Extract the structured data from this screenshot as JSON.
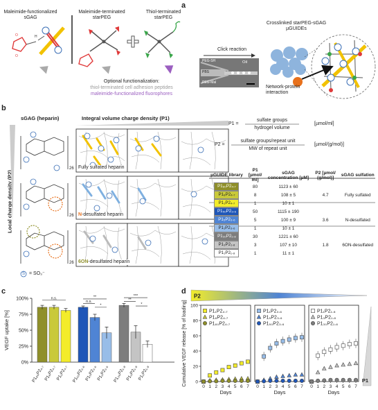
{
  "panel_a": {
    "letter": "a",
    "sgag_title": "Maleimide-functionalized sGAG",
    "maleimide_peg_title": "Maleimide-terminated starPEG",
    "thiol_peg_title": "Thiol-terminated starPEG",
    "sh_label": "SH",
    "optional_title": "Optional functionalization:",
    "optional_peptides": "thiol-terminated cell adhesion peptides",
    "optional_fluoro": "maleimide-functionalized fluorophores",
    "click_label": "Click reaction",
    "oil_label": "Oil",
    "chip_labels": [
      "PEG-SH",
      "PBS",
      "PEG-Mal"
    ],
    "crosslinked_title": "Crosslinked starPEG-sGAG µGUIDEs",
    "network_label": "Network-protein interaction",
    "colors": {
      "maleimide": "#e03a3a",
      "thiol": "#3aa64a",
      "sgag": "#f2c200",
      "peptide": "#9a9a9a",
      "fluoro": "#9b5fc0",
      "charge": "#3b6fb6",
      "protein": "#e8711c"
    }
  },
  "panel_b": {
    "letter": "b",
    "sgag_heparin": "sGAG (heparin)",
    "integral_title": "Integral volume charge density (P1)",
    "local_axis": "Local charge density (P2)",
    "rows": [
      {
        "label": "Fully sulfated heparin",
        "prefix": ""
      },
      {
        "label": "-desulfated heparin",
        "prefix": "N"
      },
      {
        "label": "-desulfated heparin",
        "prefix": "6ON"
      }
    ],
    "repeat_n": "26",
    "legend_s": "S",
    "legend_text": "= SO₃⁻",
    "eq1_lhs": "P1 =",
    "eq1_num": "sulfate groups",
    "eq1_den": "hydrogel volume",
    "eq1_unit": "[µmol/ml]",
    "eq2_lhs": "P2 =",
    "eq2_num": "sulfate groups/repeat unit",
    "eq2_den": "MW of repeat unit",
    "eq2_unit": "[µmol/(g/mol)]",
    "table": {
      "headers": [
        "µGUIDE library",
        "P1 [µmol/ ml]",
        "sGAG concentration [µM]",
        "P2 [µmol/ (g/mol)]",
        "sGAG sulfation"
      ],
      "rows": [
        {
          "name": "P1₈₀P2₄.₇",
          "p1": "80",
          "conc": "1123 ± 60",
          "color": "#8f8f2a",
          "text": "#fff"
        },
        {
          "name": "P1₈P2₄.₇",
          "p1": "8",
          "conc": "108 ± 5",
          "color": "#c9c93a",
          "text": "#222"
        },
        {
          "name": "P1₁P2₄.₇",
          "p1": "1",
          "conc": "10 ± 1",
          "color": "#f3ec2a",
          "text": "#222"
        },
        {
          "name": "P1₅₀P2₃.₆",
          "p1": "50",
          "conc": "1115 ± 190",
          "color": "#1f56b8",
          "text": "#fff"
        },
        {
          "name": "P1₅P2₃.₆",
          "p1": "5",
          "conc": "100 ± 9",
          "color": "#4f84d4",
          "text": "#fff"
        },
        {
          "name": "P1₁P2₃.₆",
          "p1": "1",
          "conc": "10 ± 1",
          "color": "#98bde8",
          "text": "#222"
        },
        {
          "name": "P1₃₀P2₁.₈",
          "p1": "30",
          "conc": "1221 ± 60",
          "color": "#7d7d7d",
          "text": "#fff"
        },
        {
          "name": "P1₃P2₁.₈",
          "p1": "3",
          "conc": "107 ± 10",
          "color": "#c4c4c4",
          "text": "#222"
        },
        {
          "name": "P1₁P2₁.₈",
          "p1": "1",
          "conc": "11 ± 1",
          "color": "#ffffff",
          "text": "#222"
        }
      ],
      "groups": [
        {
          "p2": "4.7",
          "sulfation": "Fully sulfated"
        },
        {
          "p2": "3.6",
          "sulfation": "N-desulfated"
        },
        {
          "p2": "1.8",
          "sulfation": "6ON-desulfated"
        }
      ]
    }
  },
  "chart_data": [
    {
      "type": "bar",
      "panel": "c",
      "ylabel": "VEGF uptake [%]",
      "ylim": [
        0,
        100
      ],
      "yticks": [
        "0%",
        "25%",
        "50%",
        "75%",
        "100%"
      ],
      "categories": [
        "P1₈₀P2₄.₇",
        "P1₈P2₄.₇",
        "P1₁P2₄.₇",
        "P1₅₀P2₃.₆",
        "P1₅P2₃.₆",
        "P1₁P2₃.₆",
        "P1₃₀P2₁.₈",
        "P1₃P2₁.₈",
        "P1₁P2₁.₈"
      ],
      "values": [
        86,
        86,
        81,
        86,
        70,
        46,
        89,
        47,
        28
      ],
      "errors": [
        3,
        3,
        3,
        2,
        5,
        9,
        3,
        10,
        5
      ],
      "colors": [
        "#8f8f2a",
        "#c9c93a",
        "#f3ec2a",
        "#1f56b8",
        "#4f84d4",
        "#98bde8",
        "#7d7d7d",
        "#c4c4c4",
        "#ffffff"
      ],
      "significance": [
        "n.s.",
        "**",
        "n.s.",
        "*",
        "***",
        "**",
        "*"
      ]
    },
    {
      "type": "scatter",
      "panel": "d",
      "gradient_label": "P2",
      "p1_label": "P1",
      "xlabel": "Days",
      "ylabel": "Cumulative VEGF release [% of loading]",
      "ylim": [
        0,
        100
      ],
      "yticks": [
        "0",
        "20",
        "40",
        "60",
        "80",
        "100"
      ],
      "x": [
        0,
        1,
        2,
        3,
        4,
        5,
        6,
        7
      ],
      "groups": [
        {
          "series": [
            {
              "name": "P1₁P2₄.₇",
              "marker": "square",
              "color": "#f3ec2a",
              "values": [
                0,
                8,
                12,
                15,
                19,
                21,
                24,
                26
              ]
            },
            {
              "name": "P1₈P2₄.₇",
              "marker": "triangle",
              "color": "#c9c93a",
              "values": [
                0,
                1.5,
                2,
                2.5,
                3,
                3.5,
                4,
                4
              ]
            },
            {
              "name": "P1₈₀P2₄.₇",
              "marker": "circle",
              "color": "#8f8f2a",
              "values": [
                0,
                0.5,
                0.5,
                1,
                1,
                1,
                1,
                1
              ]
            }
          ]
        },
        {
          "series": [
            {
              "name": "P1₁P2₃.₆",
              "marker": "square",
              "color": "#98bde8",
              "values": [
                0,
                33,
                44,
                50,
                53,
                55,
                57,
                58
              ]
            },
            {
              "name": "P1₅P2₃.₆",
              "marker": "triangle",
              "color": "#4f84d4",
              "values": [
                0,
                2,
                4,
                6,
                7,
                8,
                9,
                9
              ]
            },
            {
              "name": "P1₅₀P2₃.₆",
              "marker": "circle",
              "color": "#1f56b8",
              "values": [
                0,
                0.5,
                1,
                1,
                1,
                1,
                1,
                1
              ]
            }
          ]
        },
        {
          "series": [
            {
              "name": "P1₁P2₁.₈",
              "marker": "square",
              "color": "#ffffff",
              "values": [
                0,
                34,
                39,
                42,
                45,
                47,
                49,
                50
              ]
            },
            {
              "name": "P1₃P2₁.₈",
              "marker": "triangle",
              "color": "#c4c4c4",
              "values": [
                0,
                12,
                17,
                19,
                21,
                22,
                23,
                24
              ]
            },
            {
              "name": "P1₃₀P2₁.₈",
              "marker": "circle",
              "color": "#7d7d7d",
              "values": [
                0,
                1,
                1.5,
                2,
                2,
                2,
                2,
                2
              ]
            }
          ]
        }
      ]
    }
  ]
}
